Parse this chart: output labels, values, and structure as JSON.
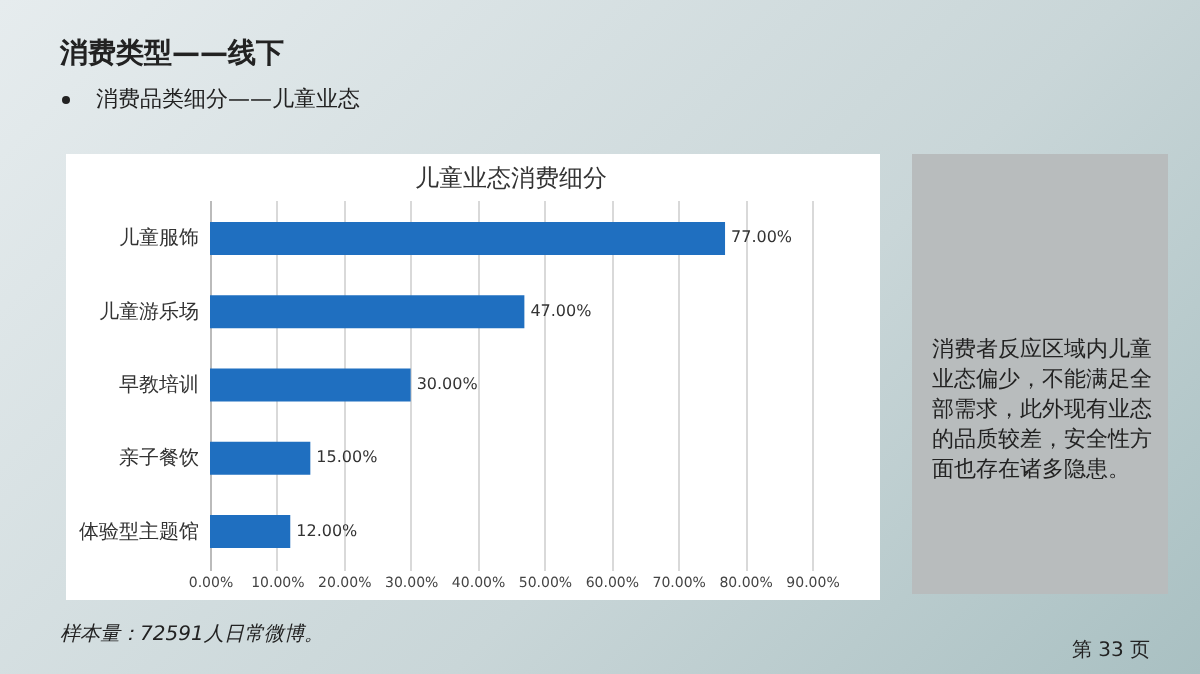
{
  "chart_data": {
    "type": "bar",
    "orientation": "horizontal",
    "title": "儿童业态消费细分",
    "categories": [
      "儿童服饰",
      "儿童游乐场",
      "早教培训",
      "亲子餐饮",
      "体验型主题馆"
    ],
    "values": [
      77,
      47,
      30,
      15,
      12
    ],
    "value_labels": [
      "77.00%",
      "47.00%",
      "30.00%",
      "15.00%",
      "12.00%"
    ],
    "color": "#1f6fc0",
    "xlim": [
      0,
      90
    ],
    "xticks": [
      {
        "value": 0,
        "label": "0.00%"
      },
      {
        "value": 10,
        "label": "10.00%"
      },
      {
        "value": 20,
        "label": "20.00%"
      },
      {
        "value": 30,
        "label": "30.00%"
      },
      {
        "value": 40,
        "label": "40.00%"
      },
      {
        "value": 50,
        "label": "50.00%"
      },
      {
        "value": 60,
        "label": "60.00%"
      },
      {
        "value": 70,
        "label": "70.00%"
      },
      {
        "value": 80,
        "label": "80.00%"
      },
      {
        "value": 90,
        "label": "90.00%"
      }
    ],
    "grid": "x",
    "annotations": [
      "消费类型——线下",
      "消费品类细分——儿童业态",
      "消费者反应区域内儿童业态偏少，不能满足全部需求，此外现有业态的品质较差，安全性方面也存在诸多隐患。",
      "样本量：72591人日常微博。",
      "第 33 页"
    ]
  }
}
